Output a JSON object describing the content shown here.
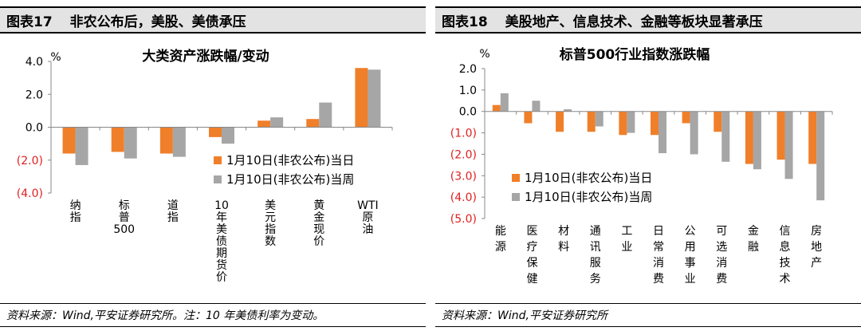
{
  "panels": [
    {
      "figure_no": "图表17",
      "figure_title": "非农公布后，美股、美债承压",
      "source": "资料来源：Wind,平安证券研究所。注：10 年美债利率为变动。"
    },
    {
      "figure_no": "图表18",
      "figure_title": "美股地产、信息技术、金融等板块显著承压",
      "source": "资料来源：Wind,平安证券研究所"
    }
  ],
  "colors": {
    "orange": "#f07f2a",
    "gray": "#a6a6a6",
    "negative_tick": "#e02020"
  },
  "chart_data": [
    {
      "type": "bar",
      "title": "大类资产涨跌幅/变动",
      "ylabel": "%",
      "ylim": [
        -4.0,
        4.0
      ],
      "yticks": [
        4.0,
        2.0,
        0.0,
        -2.0,
        -4.0
      ],
      "ytick_labels": [
        "4.0",
        "2.0",
        "0.0",
        "(2.0)",
        "(4.0)"
      ],
      "categories": [
        "纳指",
        "标普500",
        "道指",
        "10年美债期货价",
        "美元指数",
        "黄金现价",
        "WTI原油"
      ],
      "series": [
        {
          "name": "1月10日(非农公布)当日",
          "values": [
            -1.6,
            -1.5,
            -1.6,
            -0.6,
            0.4,
            0.5,
            3.6
          ]
        },
        {
          "name": "1月10日(非农公布)当周",
          "values": [
            -2.3,
            -1.9,
            -1.8,
            -1.0,
            0.6,
            1.5,
            3.5
          ]
        }
      ],
      "legend_position": "lower-right"
    },
    {
      "type": "bar",
      "title": "标普500行业指数涨跌幅",
      "ylabel": "%",
      "ylim": [
        -5.0,
        2.0
      ],
      "yticks": [
        2.0,
        1.0,
        0.0,
        -1.0,
        -2.0,
        -3.0,
        -4.0,
        -5.0
      ],
      "ytick_labels": [
        "2.0",
        "1.0",
        "0.0",
        "(1.0)",
        "(2.0)",
        "(3.0)",
        "(4.0)",
        "(5.0)"
      ],
      "categories": [
        "能源",
        "医疗保健",
        "材料",
        "通讯服务",
        "工业",
        "日常消费",
        "公用事业",
        "可选消费",
        "金融",
        "信息技术",
        "房地产"
      ],
      "series": [
        {
          "name": "1月10日(非农公布)当日",
          "values": [
            0.3,
            -0.55,
            -0.95,
            -0.95,
            -1.1,
            -1.1,
            -0.55,
            -0.95,
            -2.45,
            -2.25,
            -2.45
          ]
        },
        {
          "name": "1月10日(非农公布)当周",
          "values": [
            0.85,
            0.5,
            0.1,
            -0.7,
            -1.0,
            -1.95,
            -2.0,
            -2.35,
            -2.7,
            -3.15,
            -4.15
          ]
        }
      ],
      "legend_position": "lower-left"
    }
  ]
}
